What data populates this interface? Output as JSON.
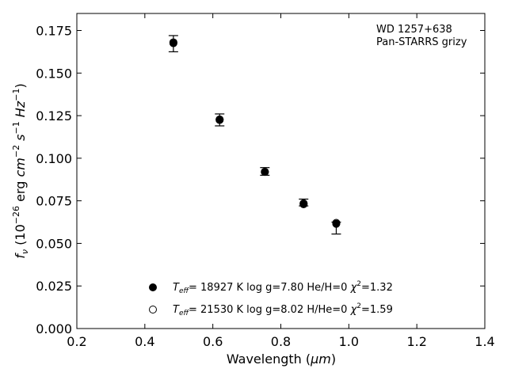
{
  "chart_data": {
    "type": "scatter",
    "xlabel": "Wavelength (",
    "xlabel_unit": "μm",
    "xlabel_close": ")",
    "ylabel_prefix": "f",
    "ylabel_sub": "ν",
    "ylabel_open": " (10",
    "ylabel_exp1": "−26",
    "ylabel_mid": " erg ",
    "ylabel_cm": "cm",
    "ylabel_exp2": "−2",
    "ylabel_s": " s",
    "ylabel_exp3": "−1",
    "ylabel_hz": " Hz",
    "ylabel_exp4": "−1",
    "ylabel_close": ")",
    "xlim": [
      0.2,
      1.4
    ],
    "ylim": [
      0.0,
      0.185
    ],
    "xticks": [
      0.2,
      0.4,
      0.6,
      0.8,
      1.0,
      1.2,
      1.4
    ],
    "xtick_labels": [
      "0.2",
      "0.4",
      "0.6",
      "0.8",
      "1.0",
      "1.2",
      "1.4"
    ],
    "yticks": [
      0.0,
      0.025,
      0.05,
      0.075,
      0.1,
      0.125,
      0.15,
      0.175
    ],
    "ytick_labels": [
      "0.000",
      "0.025",
      "0.050",
      "0.075",
      "0.100",
      "0.125",
      "0.150",
      "0.175"
    ],
    "grid": false,
    "annotation": [
      "WD 1257+638",
      "Pan-STARRS grizy"
    ],
    "observed": {
      "x": [
        0.484,
        0.62,
        0.753,
        0.867,
        0.963
      ],
      "y": [
        0.1675,
        0.1225,
        0.092,
        0.0735,
        0.0615
      ],
      "yerr_low": [
        0.005,
        0.0035,
        0.002,
        0.0015,
        0.006
      ],
      "yerr_high": [
        0.0045,
        0.0035,
        0.0025,
        0.0025,
        0.001
      ]
    },
    "legend_position": "lower center",
    "series": [
      {
        "marker": "filled",
        "t_label": "T",
        "t_sub": "eff",
        "desc": "= 18927 K  log g=7.80  He/H=0  ",
        "chi_symbol": "χ",
        "chi_exp": "2",
        "chi_val": "=1.32",
        "x": [
          0.484,
          0.62,
          0.753,
          0.867,
          0.963
        ],
        "y": [
          0.168,
          0.1225,
          0.092,
          0.073,
          0.062
        ]
      },
      {
        "marker": "open",
        "t_label": "T",
        "t_sub": "eff",
        "desc": "= 21530 K  log g=8.02  H/He=0  ",
        "chi_symbol": "χ",
        "chi_exp": "2",
        "chi_val": "=1.59",
        "x": [
          0.484,
          0.62,
          0.753,
          0.867,
          0.963
        ],
        "y": [
          0.168,
          0.1228,
          0.092,
          0.0732,
          0.062
        ]
      }
    ]
  }
}
